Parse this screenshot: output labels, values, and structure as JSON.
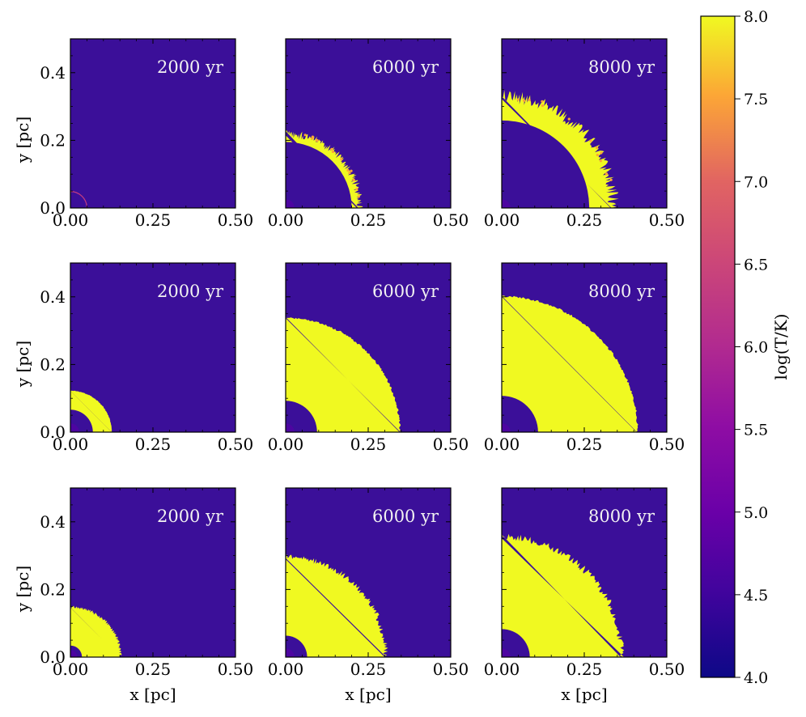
{
  "chart_data": {
    "type": "heatmap",
    "layout": {
      "rows": 3,
      "cols": 3
    },
    "xlabel": "x [pc]",
    "ylabel": "y [pc]",
    "xlim": [
      0,
      0.5
    ],
    "ylim": [
      0,
      0.5
    ],
    "x_ticks": [
      "0.00",
      "0.25",
      "0.50"
    ],
    "y_ticks": [
      "0.0",
      "0.2",
      "0.4"
    ],
    "x_tick_values": [
      0,
      0.25,
      0.5
    ],
    "y_tick_values": [
      0,
      0.2,
      0.4
    ],
    "colors": {
      "background": "#3b0f99",
      "hot": "#f0f921",
      "warm": "#fca636",
      "inner": "#5302a3",
      "text_on_plot": "#f2f2f2"
    },
    "colorbar": {
      "label": "log(T/K)",
      "min": 4.0,
      "max": 8.0,
      "ticks": [
        "4.0",
        "4.5",
        "5.0",
        "5.5",
        "6.0",
        "6.5",
        "7.0",
        "7.5",
        "8.0"
      ],
      "colormap": "plasma"
    },
    "panels": [
      {
        "row": 0,
        "col": 0,
        "label": "2000 yr",
        "outer_radius_pc": 0.05,
        "inner_radius_pc": 0.0,
        "style": "faint-arc"
      },
      {
        "row": 0,
        "col": 1,
        "label": "6000 yr",
        "outer_radius_pc": 0.22,
        "inner_radius_pc": 0.2,
        "style": "thin-shell"
      },
      {
        "row": 0,
        "col": 2,
        "label": "8000 yr",
        "outer_radius_pc": 0.33,
        "inner_radius_pc": 0.265,
        "style": "thin-shell"
      },
      {
        "row": 1,
        "col": 0,
        "label": "2000 yr",
        "outer_radius_pc": 0.125,
        "inner_radius_pc": 0.068,
        "style": "filled-ring"
      },
      {
        "row": 1,
        "col": 1,
        "label": "6000 yr",
        "outer_radius_pc": 0.345,
        "inner_radius_pc": 0.095,
        "style": "filled-ring"
      },
      {
        "row": 1,
        "col": 2,
        "label": "8000 yr",
        "outer_radius_pc": 0.41,
        "inner_radius_pc": 0.11,
        "style": "filled-ring"
      },
      {
        "row": 2,
        "col": 0,
        "label": "2000 yr",
        "outer_radius_pc": 0.15,
        "inner_radius_pc": 0.035,
        "style": "filled-ring"
      },
      {
        "row": 2,
        "col": 1,
        "label": "6000 yr",
        "outer_radius_pc": 0.3,
        "inner_radius_pc": 0.065,
        "style": "filled-ring"
      },
      {
        "row": 2,
        "col": 2,
        "label": "8000 yr",
        "outer_radius_pc": 0.36,
        "inner_radius_pc": 0.085,
        "style": "filled-ring"
      }
    ]
  }
}
